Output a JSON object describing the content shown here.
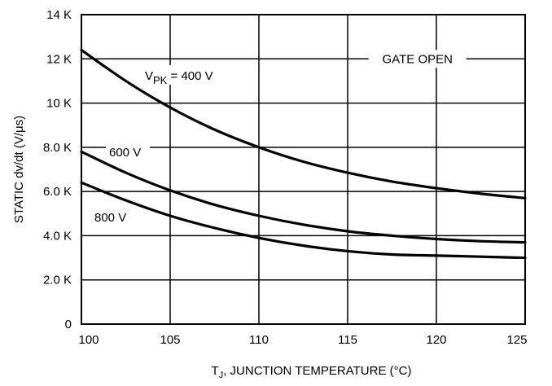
{
  "chart_data": {
    "type": "line",
    "title": "",
    "xlabel_main": "T",
    "xlabel_sub": "J",
    "xlabel_rest": ", JUNCTION TEMPERATURE (°C)",
    "ylabel": "STATIC dv/dt (V/μs)",
    "xlim": [
      100,
      125
    ],
    "ylim": [
      0,
      14000
    ],
    "x_ticks": [
      100,
      105,
      110,
      115,
      120,
      125
    ],
    "x_tick_labels": [
      "100",
      "105",
      "110",
      "115",
      "120",
      "125"
    ],
    "y_ticks": [
      0,
      2000,
      4000,
      6000,
      8000,
      10000,
      12000,
      14000
    ],
    "y_tick_labels": [
      "0",
      "2.0 K",
      "4.0 K",
      "6.0 K",
      "8.0 K",
      "10 K",
      "12 K",
      "14 K"
    ],
    "grid": true,
    "annotation": "GATE OPEN",
    "series": [
      {
        "name": "V_PK = 400 V",
        "label_main": "V",
        "label_sub": "PK",
        "label_rest": " = 400 V",
        "x": [
          100,
          102.5,
          105,
          107.5,
          110,
          112.5,
          115,
          117.5,
          120,
          122.5,
          125
        ],
        "y": [
          12400,
          11000,
          9800,
          8800,
          8000,
          7350,
          6850,
          6450,
          6150,
          5900,
          5700
        ]
      },
      {
        "name": "600 V",
        "label_main": "600 V",
        "x": [
          100,
          102.5,
          105,
          107.5,
          110,
          112.5,
          115,
          117.5,
          120,
          122.5,
          125
        ],
        "y": [
          7800,
          6850,
          6050,
          5400,
          4900,
          4500,
          4200,
          4000,
          3850,
          3750,
          3700
        ]
      },
      {
        "name": "800 V",
        "label_main": "800 V",
        "x": [
          100,
          102.5,
          105,
          107.5,
          110,
          112.5,
          115,
          117.5,
          120,
          122.5,
          125
        ],
        "y": [
          6400,
          5600,
          4900,
          4350,
          3900,
          3550,
          3300,
          3150,
          3100,
          3050,
          3000
        ]
      }
    ]
  }
}
